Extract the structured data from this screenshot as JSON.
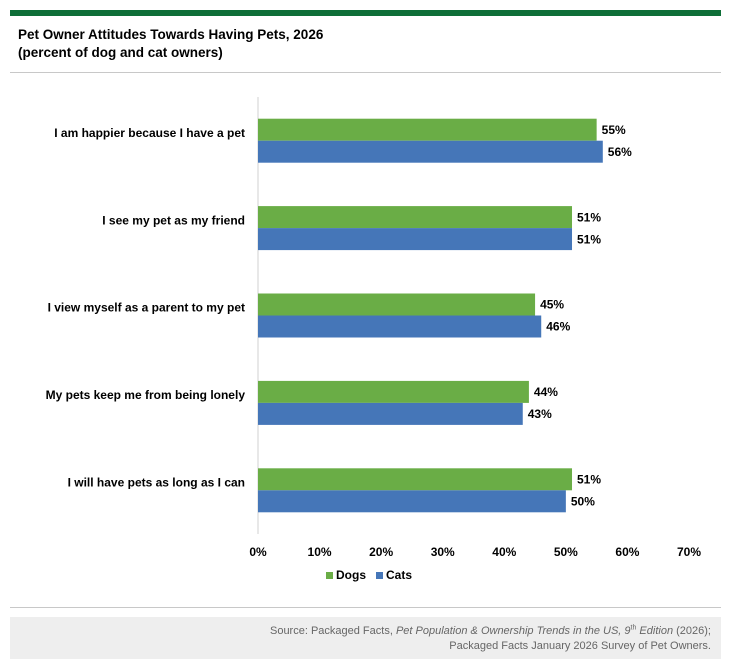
{
  "header": {
    "title": "Pet Owner Attitudes Towards Having Pets, 2026",
    "subtitle": "(percent of dog and cat owners)"
  },
  "colors": {
    "brand_bar": "#0e6e38",
    "dogs": "#6aad46",
    "cats": "#4576b8",
    "axis": "#d0d0d0",
    "source_bg": "#eeeeee",
    "source_text": "#666666"
  },
  "chart_data": {
    "type": "bar",
    "orientation": "horizontal",
    "categories": [
      "I am happier because I have a pet",
      "I see my pet as my friend",
      "I view myself as a parent to my pet",
      "My pets keep me from being lonely",
      "I will have pets as long as I can"
    ],
    "series": [
      {
        "name": "Dogs",
        "values": [
          55,
          51,
          45,
          44,
          51
        ],
        "labels": [
          "55%",
          "51%",
          "45%",
          "44%",
          "51%"
        ]
      },
      {
        "name": "Cats",
        "values": [
          56,
          51,
          46,
          43,
          50
        ],
        "labels": [
          "56%",
          "51%",
          "46%",
          "43%",
          "50%"
        ]
      }
    ],
    "xlim": [
      0,
      70
    ],
    "x_ticks": [
      "0%",
      "10%",
      "20%",
      "30%",
      "40%",
      "50%",
      "60%",
      "70%"
    ],
    "grid": false,
    "legend_position": "bottom"
  },
  "source": {
    "prefix": "Source: Packaged Facts, ",
    "italic_title": "Pet Population & Ownership Trends in the US, 9",
    "superscript": "th",
    "italic_edition": " Edition",
    "year": " (2026);",
    "line2": "Packaged Facts January 2026 Survey of Pet Owners."
  }
}
